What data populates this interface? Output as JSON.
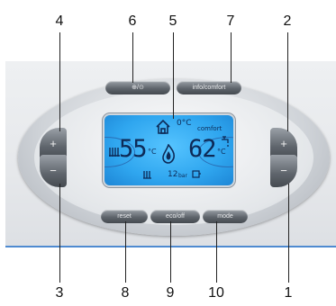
{
  "callouts": {
    "c1": "1",
    "c2": "2",
    "c3": "3",
    "c4": "4",
    "c5": "5",
    "c6": "6",
    "c7": "7",
    "c8": "8",
    "c9": "9",
    "c10": "10"
  },
  "controls": {
    "top_left_button": "⊕/⊙",
    "top_right_button": "info/comfort",
    "bottom_left_button": "reset",
    "bottom_middle_button": "eco/off",
    "bottom_right_button": "mode"
  },
  "side_buttons": {
    "left_plus": "+",
    "left_minus": "−",
    "right_plus": "+",
    "right_minus": "−"
  },
  "display": {
    "heating_temp": "55",
    "hot_water_temp": "62",
    "temp_unit": "°C",
    "comfort_label": "comfort",
    "pressure_value": "12",
    "pressure_unit": "bar"
  },
  "colors": {
    "lcd_background": "#2fa6ef",
    "lcd_segments": "#0d2a57",
    "body_accent_line": "#4f8ad0"
  }
}
